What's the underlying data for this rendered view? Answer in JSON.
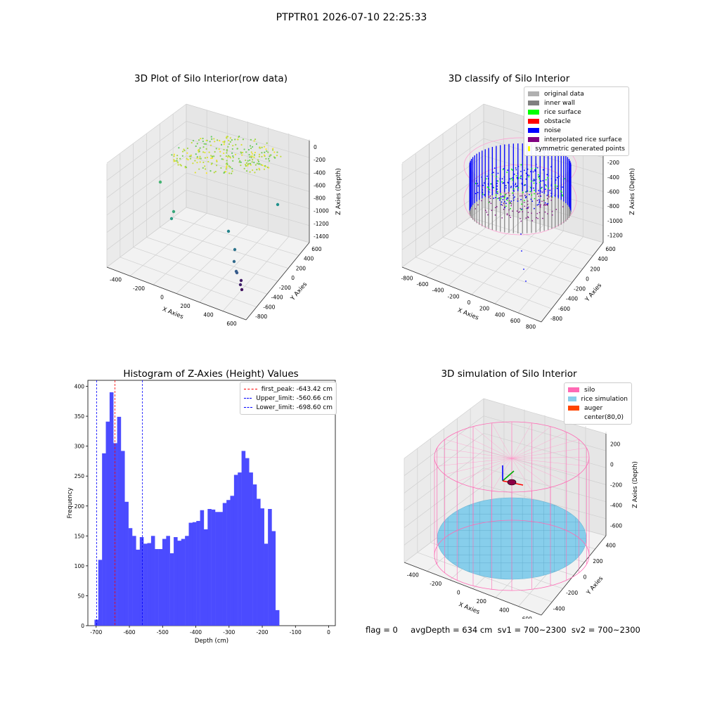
{
  "suptitle": "PTPTR01 2026-07-10 22:25:33",
  "panel1": {
    "title": "3D Plot of Silo Interior(row data)",
    "xlabel": "X Axies",
    "ylabel": "Y Axies",
    "zlabel": "Z Axies (Depth)",
    "xticks": [
      "-400",
      "-200",
      "0",
      "200",
      "400",
      "600"
    ],
    "yticks": [
      "-800",
      "-600",
      "-400",
      "-200",
      "0",
      "200",
      "400",
      "600"
    ],
    "zticks": [
      "0",
      "-200",
      "-400",
      "-600",
      "-800",
      "-1000",
      "-1200",
      "-1400"
    ]
  },
  "panel2": {
    "title": "3D classify of Silo Interior",
    "xlabel": "X Axies",
    "ylabel": "Y Axies",
    "zlabel": "Z Axies (Depth)",
    "xticks": [
      "-800",
      "-600",
      "-400",
      "-200",
      "0",
      "200",
      "400",
      "600",
      "800"
    ],
    "yticks": [
      "-800",
      "-600",
      "-400",
      "-200",
      "0",
      "200",
      "400",
      "600"
    ],
    "zticks": [
      "0",
      "-200",
      "-400",
      "-600",
      "-800",
      "-1000",
      "-1200"
    ],
    "legend": [
      {
        "label": "original data",
        "color": "#b0b0b0"
      },
      {
        "label": "inner wall",
        "color": "#808080"
      },
      {
        "label": "rice surface",
        "color": "#00ff00"
      },
      {
        "label": "obstacle",
        "color": "#ff0000"
      },
      {
        "label": "noise",
        "color": "#0000ff"
      },
      {
        "label": "interpolated rice surface",
        "color": "#800080"
      },
      {
        "label": "symmetric generated points",
        "color": "#ffff00"
      }
    ]
  },
  "panel3": {
    "title": "Histogram of Z-Axies (Height) Values",
    "xlabel": "Depth (cm)",
    "ylabel": "Frequency",
    "legend": [
      {
        "label": "first_peak: -643.42 cm",
        "color": "#ff0000"
      },
      {
        "label": "Upper_limit: -560.66 cm",
        "color": "#0000ff"
      },
      {
        "label": "Lower_limit: -698.60 cm",
        "color": "#0000ff"
      }
    ]
  },
  "panel4": {
    "title": "3D simulation of Silo Interior",
    "xlabel": "X Axies",
    "ylabel": "Y Axies",
    "zlabel": "Z Axies (Depth)",
    "xticks": [
      "-400",
      "-200",
      "0",
      "200",
      "400",
      "600"
    ],
    "yticks": [
      "-400",
      "-200",
      "0",
      "200",
      "400"
    ],
    "zticks": [
      "200",
      "0",
      "-200",
      "-400",
      "-600"
    ],
    "legend": [
      {
        "label": "silo",
        "color": "#ff69b4"
      },
      {
        "label": "rice simulation",
        "color": "#87ceeb"
      },
      {
        "label": "auger",
        "color": "#ff4500"
      },
      {
        "label": "center(80,0)",
        "color": ""
      }
    ]
  },
  "footer": "flag = 0     avgDepth = 634 cm  sv1 = 700~2300  sv2 = 700~2300",
  "chart_data": [
    {
      "type": "scatter",
      "title": "3D Plot of Silo Interior(row data)",
      "xlabel": "X Axies",
      "ylabel": "Y Axies",
      "zlabel": "Z Axies (Depth)"
    },
    {
      "type": "scatter",
      "title": "3D classify of Silo Interior",
      "xlabel": "X Axies",
      "ylabel": "Y Axies",
      "zlabel": "Z Axies (Depth)"
    },
    {
      "type": "bar",
      "title": "Histogram of Z-Axies (Height) Values",
      "xlabel": "Depth (cm)",
      "ylabel": "Frequency",
      "xlim": [
        -725,
        20
      ],
      "ylim": [
        0,
        410
      ],
      "xticks": [
        -700,
        -600,
        -500,
        -400,
        -300,
        -200,
        -100,
        0
      ],
      "yticks": [
        0,
        50,
        100,
        150,
        200,
        250,
        300,
        350,
        400
      ],
      "bin_start": -705,
      "bin_width": 11.35,
      "values": [
        10,
        110,
        288,
        341,
        390,
        305,
        349,
        292,
        207,
        163,
        150,
        127,
        148,
        137,
        138,
        150,
        128,
        128,
        145,
        150,
        121,
        148,
        142,
        145,
        150,
        172,
        173,
        175,
        193,
        161,
        195,
        194,
        190,
        190,
        205,
        210,
        217,
        252,
        256,
        292,
        280,
        256,
        236,
        212,
        196,
        137,
        195,
        158,
        26
      ],
      "series": [
        {
          "name": "first_peak: -643.42 cm",
          "vline": -643.42
        },
        {
          "name": "Upper_limit: -560.66 cm",
          "vline": -560.66
        },
        {
          "name": "Lower_limit: -698.60 cm",
          "vline": -698.6
        }
      ],
      "color": "#4b4bff"
    },
    {
      "type": "scatter",
      "title": "3D simulation of Silo Interior",
      "xlabel": "X Axies",
      "ylabel": "Y Axies",
      "zlabel": "Z Axies (Depth)"
    }
  ]
}
